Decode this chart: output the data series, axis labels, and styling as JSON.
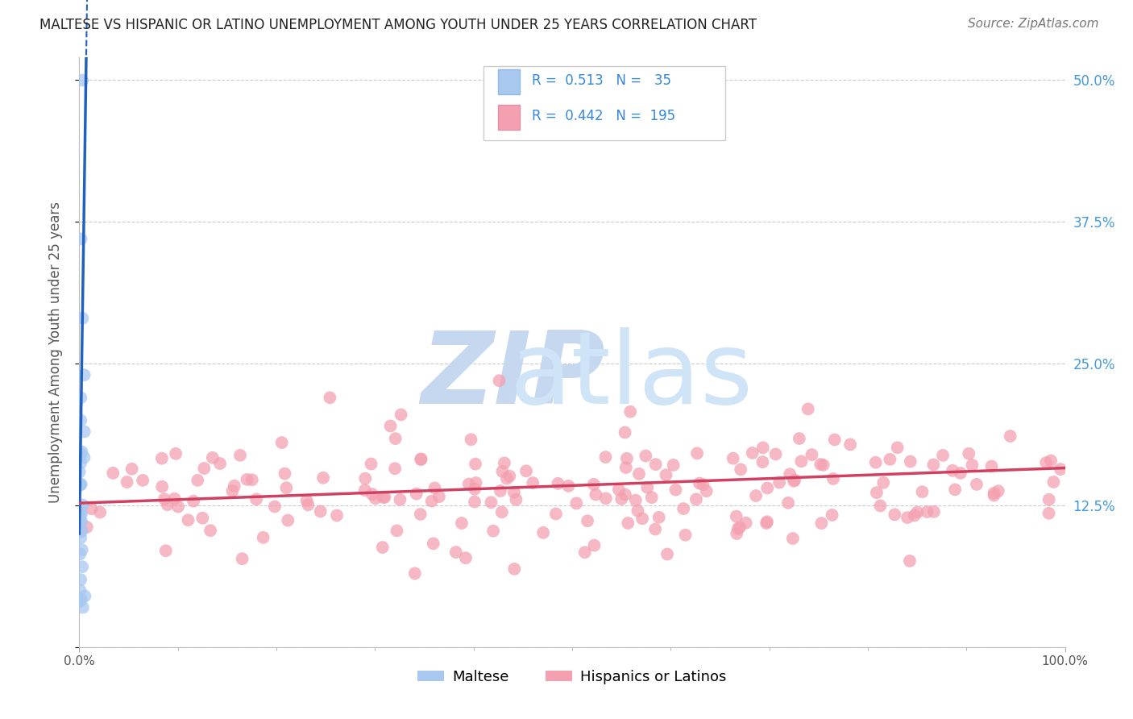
{
  "title": "MALTESE VS HISPANIC OR LATINO UNEMPLOYMENT AMONG YOUTH UNDER 25 YEARS CORRELATION CHART",
  "source": "Source: ZipAtlas.com",
  "ylabel": "Unemployment Among Youth under 25 years",
  "xlim": [
    0.0,
    1.0
  ],
  "ylim": [
    0.0,
    0.52
  ],
  "yticks": [
    0.0,
    0.125,
    0.25,
    0.375,
    0.5
  ],
  "ytick_labels": [
    "",
    "12.5%",
    "25.0%",
    "37.5%",
    "50.0%"
  ],
  "maltese_R": 0.513,
  "maltese_N": 35,
  "hispanic_R": 0.442,
  "hispanic_N": 195,
  "maltese_color": "#a8c8f0",
  "hispanic_color": "#f4a0b0",
  "maltese_line_color": "#2060c0",
  "hispanic_line_color": "#d04060",
  "watermark_zip_color": "#c8daf0",
  "watermark_atlas_color": "#c0d8f0",
  "background_color": "#ffffff",
  "grid_color": "#cccccc",
  "hispanic_trend_y0": 0.127,
  "hispanic_trend_y1": 0.158,
  "title_fontsize": 12,
  "source_fontsize": 11,
  "axis_label_fontsize": 12,
  "tick_fontsize": 11,
  "legend_fontsize": 12
}
